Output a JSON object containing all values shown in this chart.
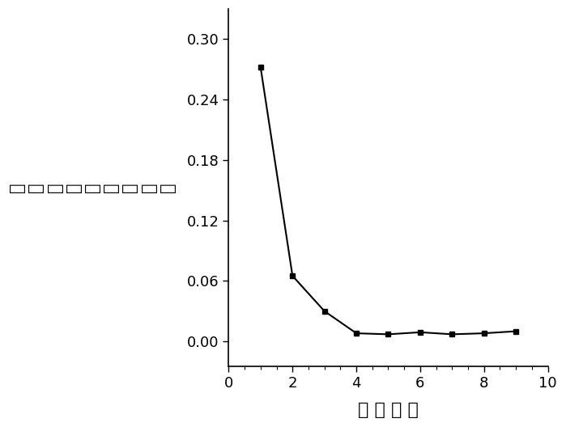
{
  "x": [
    1,
    2,
    3,
    4,
    5,
    6,
    7,
    8,
    9
  ],
  "y": [
    0.272,
    0.065,
    0.03,
    0.008,
    0.007,
    0.009,
    0.007,
    0.008,
    0.01
  ],
  "line_color": "#000000",
  "marker": "s",
  "marker_size": 5,
  "marker_facecolor": "#000000",
  "linewidth": 1.5,
  "xlabel": "主 因 子 数",
  "ylabel_chars": [
    "差",
    "误",
    "根",
    "方",
    "均",
    "证",
    "验",
    "叉",
    "交"
  ],
  "xlim": [
    0,
    10
  ],
  "ylim": [
    -0.025,
    0.33
  ],
  "xticks": [
    0,
    2,
    4,
    6,
    8,
    10
  ],
  "yticks": [
    0.0,
    0.06,
    0.12,
    0.18,
    0.24,
    0.3
  ],
  "xlabel_fontsize": 16,
  "ylabel_fontsize": 15,
  "tick_fontsize": 13,
  "background_color": "#ffffff",
  "figure_width": 6.99,
  "figure_height": 5.28,
  "dpi": 100
}
